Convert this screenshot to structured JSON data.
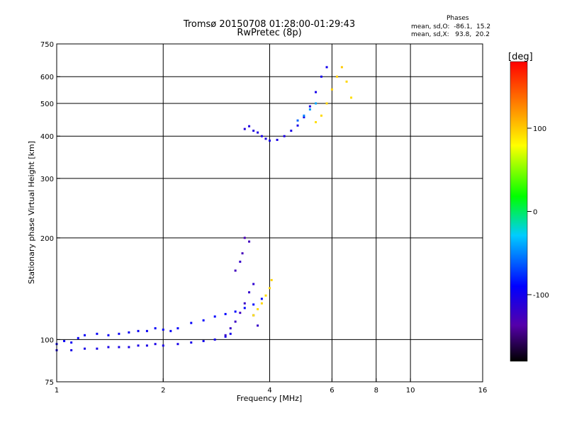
{
  "title": {
    "line1": "Tromsø 20150708 01:28:00-01:29:43",
    "line2": "RwPretec (8p)"
  },
  "stats": {
    "heading": "Phases",
    "line_o": "mean, sd,O:  -86.1,  15.2",
    "line_x": "mean, sd,X:   93.8,  20.2"
  },
  "colorbar": {
    "label": "[deg]",
    "ticks": [
      {
        "value": 100,
        "label": "100"
      },
      {
        "value": 0,
        "label": "0"
      },
      {
        "value": -100,
        "label": "-100"
      }
    ],
    "range": [
      -180,
      180
    ]
  },
  "chart_data": {
    "type": "scatter",
    "title": "Tromsø 20150708 01:28:00-01:29:43",
    "subtitle": "RwPretec (8p)",
    "xlabel": "Frequency [MHz]",
    "ylabel": "Stationary phase Virtual Height [km]",
    "xscale": "log",
    "yscale": "log",
    "xlim": [
      1,
      16
    ],
    "ylim": [
      75,
      750
    ],
    "xticks": [
      {
        "value": 1,
        "label": "1"
      },
      {
        "value": 2,
        "label": "2"
      },
      {
        "value": 4,
        "label": "4"
      },
      {
        "value": 6,
        "label": "6"
      },
      {
        "value": 8,
        "label": "8"
      },
      {
        "value": 10,
        "label": "10"
      },
      {
        "value": 16,
        "label": "16"
      }
    ],
    "yticks": [
      {
        "value": 75,
        "label": "75"
      },
      {
        "value": 100,
        "label": "100"
      },
      {
        "value": 200,
        "label": "200"
      },
      {
        "value": 300,
        "label": "300"
      },
      {
        "value": 400,
        "label": "400"
      },
      {
        "value": 500,
        "label": "500"
      },
      {
        "value": 600,
        "label": "600"
      },
      {
        "value": 750,
        "label": "750"
      }
    ],
    "grid": true,
    "color_variable": "phase [deg]",
    "series": [
      {
        "values": [
          [
            1.0,
            97,
            -95
          ],
          [
            1.05,
            99,
            -95
          ],
          [
            1.1,
            98,
            -96
          ],
          [
            1.15,
            101,
            -95
          ],
          [
            1.2,
            103,
            -94
          ],
          [
            1.3,
            104,
            -93
          ],
          [
            1.4,
            103,
            -94
          ],
          [
            1.5,
            104,
            -95
          ],
          [
            1.6,
            105,
            -95
          ],
          [
            1.7,
            106,
            -94
          ],
          [
            1.8,
            106,
            -94
          ],
          [
            1.9,
            108,
            -93
          ],
          [
            2.0,
            107,
            -93
          ],
          [
            2.1,
            106,
            -93
          ],
          [
            2.2,
            108,
            -92
          ],
          [
            2.4,
            112,
            -92
          ],
          [
            2.6,
            114,
            -91
          ],
          [
            2.8,
            117,
            -90
          ],
          [
            3.0,
            119,
            -90
          ],
          [
            3.2,
            121,
            -89
          ],
          [
            3.4,
            124,
            -89
          ],
          [
            3.6,
            127,
            -88
          ],
          [
            3.8,
            132,
            -88
          ]
        ]
      },
      {
        "values": [
          [
            1.0,
            93,
            -105
          ],
          [
            1.1,
            93,
            -104
          ],
          [
            1.2,
            94,
            -103
          ],
          [
            1.3,
            94,
            -103
          ],
          [
            1.4,
            95,
            -103
          ],
          [
            1.5,
            95,
            -104
          ],
          [
            1.6,
            95,
            -104
          ],
          [
            1.7,
            96,
            -104
          ],
          [
            1.8,
            96,
            -103
          ],
          [
            1.9,
            97,
            -103
          ],
          [
            2.0,
            96,
            -102
          ],
          [
            2.2,
            97,
            -102
          ],
          [
            2.4,
            98,
            -102
          ],
          [
            2.6,
            99,
            -101
          ],
          [
            2.8,
            100,
            -101
          ],
          [
            3.0,
            102,
            -100
          ],
          [
            3.1,
            104,
            -100
          ]
        ]
      },
      {
        "values": [
          [
            3.0,
            103,
            -118
          ],
          [
            3.1,
            108,
            -120
          ],
          [
            3.2,
            113,
            -122
          ],
          [
            3.3,
            120,
            -124
          ],
          [
            3.4,
            128,
            -121
          ],
          [
            3.5,
            138,
            -118
          ],
          [
            3.6,
            146,
            -115
          ],
          [
            3.2,
            160,
            -125
          ],
          [
            3.3,
            170,
            -120
          ],
          [
            3.35,
            180,
            -128
          ],
          [
            3.4,
            200,
            -130
          ],
          [
            3.5,
            195,
            -126
          ],
          [
            3.6,
            118,
            -123
          ],
          [
            3.7,
            110,
            -120
          ]
        ]
      },
      {
        "values": [
          [
            3.6,
            118,
            90
          ],
          [
            3.7,
            123,
            92
          ],
          [
            3.8,
            128,
            95
          ],
          [
            3.9,
            135,
            93
          ],
          [
            4.0,
            142,
            95
          ],
          [
            4.05,
            150,
            96
          ]
        ]
      },
      {
        "values": [
          [
            3.4,
            420,
            -108
          ],
          [
            3.5,
            428,
            -107
          ],
          [
            3.6,
            415,
            -106
          ],
          [
            3.7,
            410,
            -106
          ],
          [
            3.8,
            400,
            -105
          ],
          [
            3.9,
            393,
            -105
          ],
          [
            4.0,
            388,
            -104
          ],
          [
            4.2,
            390,
            -104
          ],
          [
            4.4,
            400,
            -104
          ],
          [
            4.6,
            415,
            -103
          ],
          [
            4.8,
            430,
            -103
          ],
          [
            5.0,
            455,
            -102
          ],
          [
            5.2,
            490,
            -102
          ],
          [
            5.4,
            540,
            -101
          ],
          [
            5.6,
            600,
            -101
          ],
          [
            5.8,
            640,
            -100
          ]
        ]
      },
      {
        "values": [
          [
            4.8,
            445,
            -60
          ],
          [
            5.0,
            460,
            -50
          ],
          [
            5.2,
            480,
            -45
          ],
          [
            5.4,
            500,
            -40
          ]
        ]
      },
      {
        "values": [
          [
            5.4,
            440,
            92
          ],
          [
            5.6,
            460,
            94
          ],
          [
            5.8,
            500,
            96
          ],
          [
            6.0,
            550,
            98
          ],
          [
            6.2,
            600,
            99
          ],
          [
            6.4,
            640,
            100
          ],
          [
            6.6,
            580,
            95
          ],
          [
            6.8,
            520,
            92
          ]
        ]
      }
    ]
  }
}
